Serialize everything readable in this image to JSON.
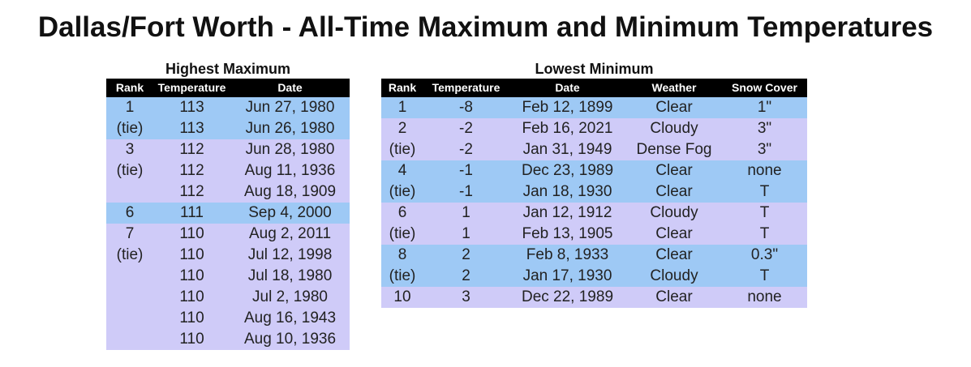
{
  "title": "Dallas/Fort Worth - All-Time Maximum and Minimum Temperatures",
  "colors": {
    "blue": "#9ec9f5",
    "purple": "#cfcbf8",
    "header": "#000000"
  },
  "max_table": {
    "title": "Highest Maximum",
    "headers": [
      "Rank",
      "Temperature",
      "Date"
    ],
    "groups": [
      {
        "rank": "1",
        "tie": "(tie)",
        "color": "blue",
        "rows": [
          {
            "temp": "113",
            "date": "Jun 27, 1980"
          },
          {
            "temp": "113",
            "date": "Jun 26, 1980"
          }
        ]
      },
      {
        "rank": "3",
        "tie": "(tie)",
        "color": "purple",
        "rows": [
          {
            "temp": "112",
            "date": "Jun 28, 1980"
          },
          {
            "temp": "112",
            "date": "Aug 11, 1936"
          },
          {
            "temp": "112",
            "date": "Aug 18, 1909"
          }
        ]
      },
      {
        "rank": "6",
        "tie": "",
        "color": "blue",
        "rows": [
          {
            "temp": "111",
            "date": "Sep 4, 2000"
          }
        ]
      },
      {
        "rank": "7",
        "tie": "(tie)",
        "color": "purple",
        "rows": [
          {
            "temp": "110",
            "date": "Aug 2, 2011"
          },
          {
            "temp": "110",
            "date": "Jul 12, 1998"
          },
          {
            "temp": "110",
            "date": "Jul 18, 1980"
          },
          {
            "temp": "110",
            "date": "Jul 2, 1980"
          },
          {
            "temp": "110",
            "date": "Aug 16, 1943"
          },
          {
            "temp": "110",
            "date": "Aug 10, 1936"
          }
        ]
      }
    ]
  },
  "min_table": {
    "title": "Lowest Minimum",
    "headers": [
      "Rank",
      "Temperature",
      "Date",
      "Weather",
      "Snow Cover"
    ],
    "groups": [
      {
        "rank": "1",
        "tie": "",
        "color": "blue",
        "rows": [
          {
            "temp": "-8",
            "date": "Feb 12, 1899",
            "weather": "Clear",
            "snow": "1\""
          }
        ]
      },
      {
        "rank": "2",
        "tie": "(tie)",
        "color": "purple",
        "rows": [
          {
            "temp": "-2",
            "date": "Feb 16, 2021",
            "weather": "Cloudy",
            "snow": "3\""
          },
          {
            "temp": "-2",
            "date": "Jan 31, 1949",
            "weather": "Dense Fog",
            "snow": "3\""
          }
        ]
      },
      {
        "rank": "4",
        "tie": "(tie)",
        "color": "blue",
        "rows": [
          {
            "temp": "-1",
            "date": "Dec 23, 1989",
            "weather": "Clear",
            "snow": "none"
          },
          {
            "temp": "-1",
            "date": "Jan 18, 1930",
            "weather": "Clear",
            "snow": "T"
          }
        ]
      },
      {
        "rank": "6",
        "tie": "(tie)",
        "color": "purple",
        "rows": [
          {
            "temp": "1",
            "date": "Jan 12, 1912",
            "weather": "Cloudy",
            "snow": "T"
          },
          {
            "temp": "1",
            "date": "Feb 13, 1905",
            "weather": "Clear",
            "snow": "T"
          }
        ]
      },
      {
        "rank": "8",
        "tie": "(tie)",
        "color": "blue",
        "rows": [
          {
            "temp": "2",
            "date": "Feb 8, 1933",
            "weather": "Clear",
            "snow": "0.3\""
          },
          {
            "temp": "2",
            "date": "Jan 17, 1930",
            "weather": "Cloudy",
            "snow": "T"
          }
        ]
      },
      {
        "rank": "10",
        "tie": "",
        "color": "purple",
        "rows": [
          {
            "temp": "3",
            "date": "Dec 22, 1989",
            "weather": "Clear",
            "snow": "none"
          }
        ]
      }
    ]
  }
}
